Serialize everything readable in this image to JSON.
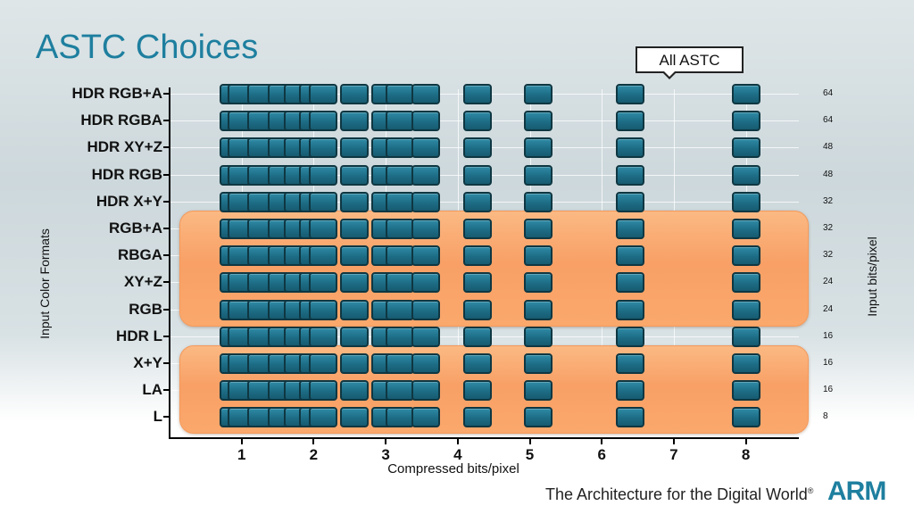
{
  "slide": {
    "title": "ASTC Choices",
    "callout": "All ASTC",
    "tagline": "The Architecture for the Digital World",
    "tagline_mark": "®",
    "logo": "ARM"
  },
  "chart_data": {
    "type": "scatter",
    "title": "ASTC Choices",
    "xlabel": "Compressed bits/pixel",
    "ylabel": "Input Color Formats",
    "y2label": "Input bits/pixel",
    "x_ticks": [
      "1",
      "2",
      "3",
      "4",
      "5",
      "6",
      "7",
      "8"
    ],
    "xlim": [
      0,
      8.75
    ],
    "formats": [
      "HDR RGB+A",
      "HDR RGBA",
      "HDR XY+Z",
      "HDR RGB",
      "HDR X+Y",
      "RGB+A",
      "RBGA",
      "XY+Z",
      "RGB",
      "HDR L",
      "X+Y",
      "LA",
      "L"
    ],
    "input_bits_per_pixel": [
      "64",
      "64",
      "48",
      "48",
      "32",
      "32",
      "32",
      "24",
      "24",
      "16",
      "16",
      "16",
      "8"
    ],
    "compressed_bitrates": [
      0.89,
      1.0,
      1.28,
      1.56,
      1.78,
      2.0,
      2.13,
      2.56,
      3.0,
      3.2,
      3.56,
      4.27,
      5.12,
      6.4,
      8.0
    ],
    "highlight_groups": [
      {
        "formats": [
          "RGB+A",
          "RBGA",
          "XY+Z",
          "RGB"
        ],
        "color": "#f9a468"
      },
      {
        "formats": [
          "X+Y",
          "LA",
          "L"
        ],
        "color": "#f9a468"
      }
    ],
    "block_color": "#1d6c85",
    "grid": true
  }
}
